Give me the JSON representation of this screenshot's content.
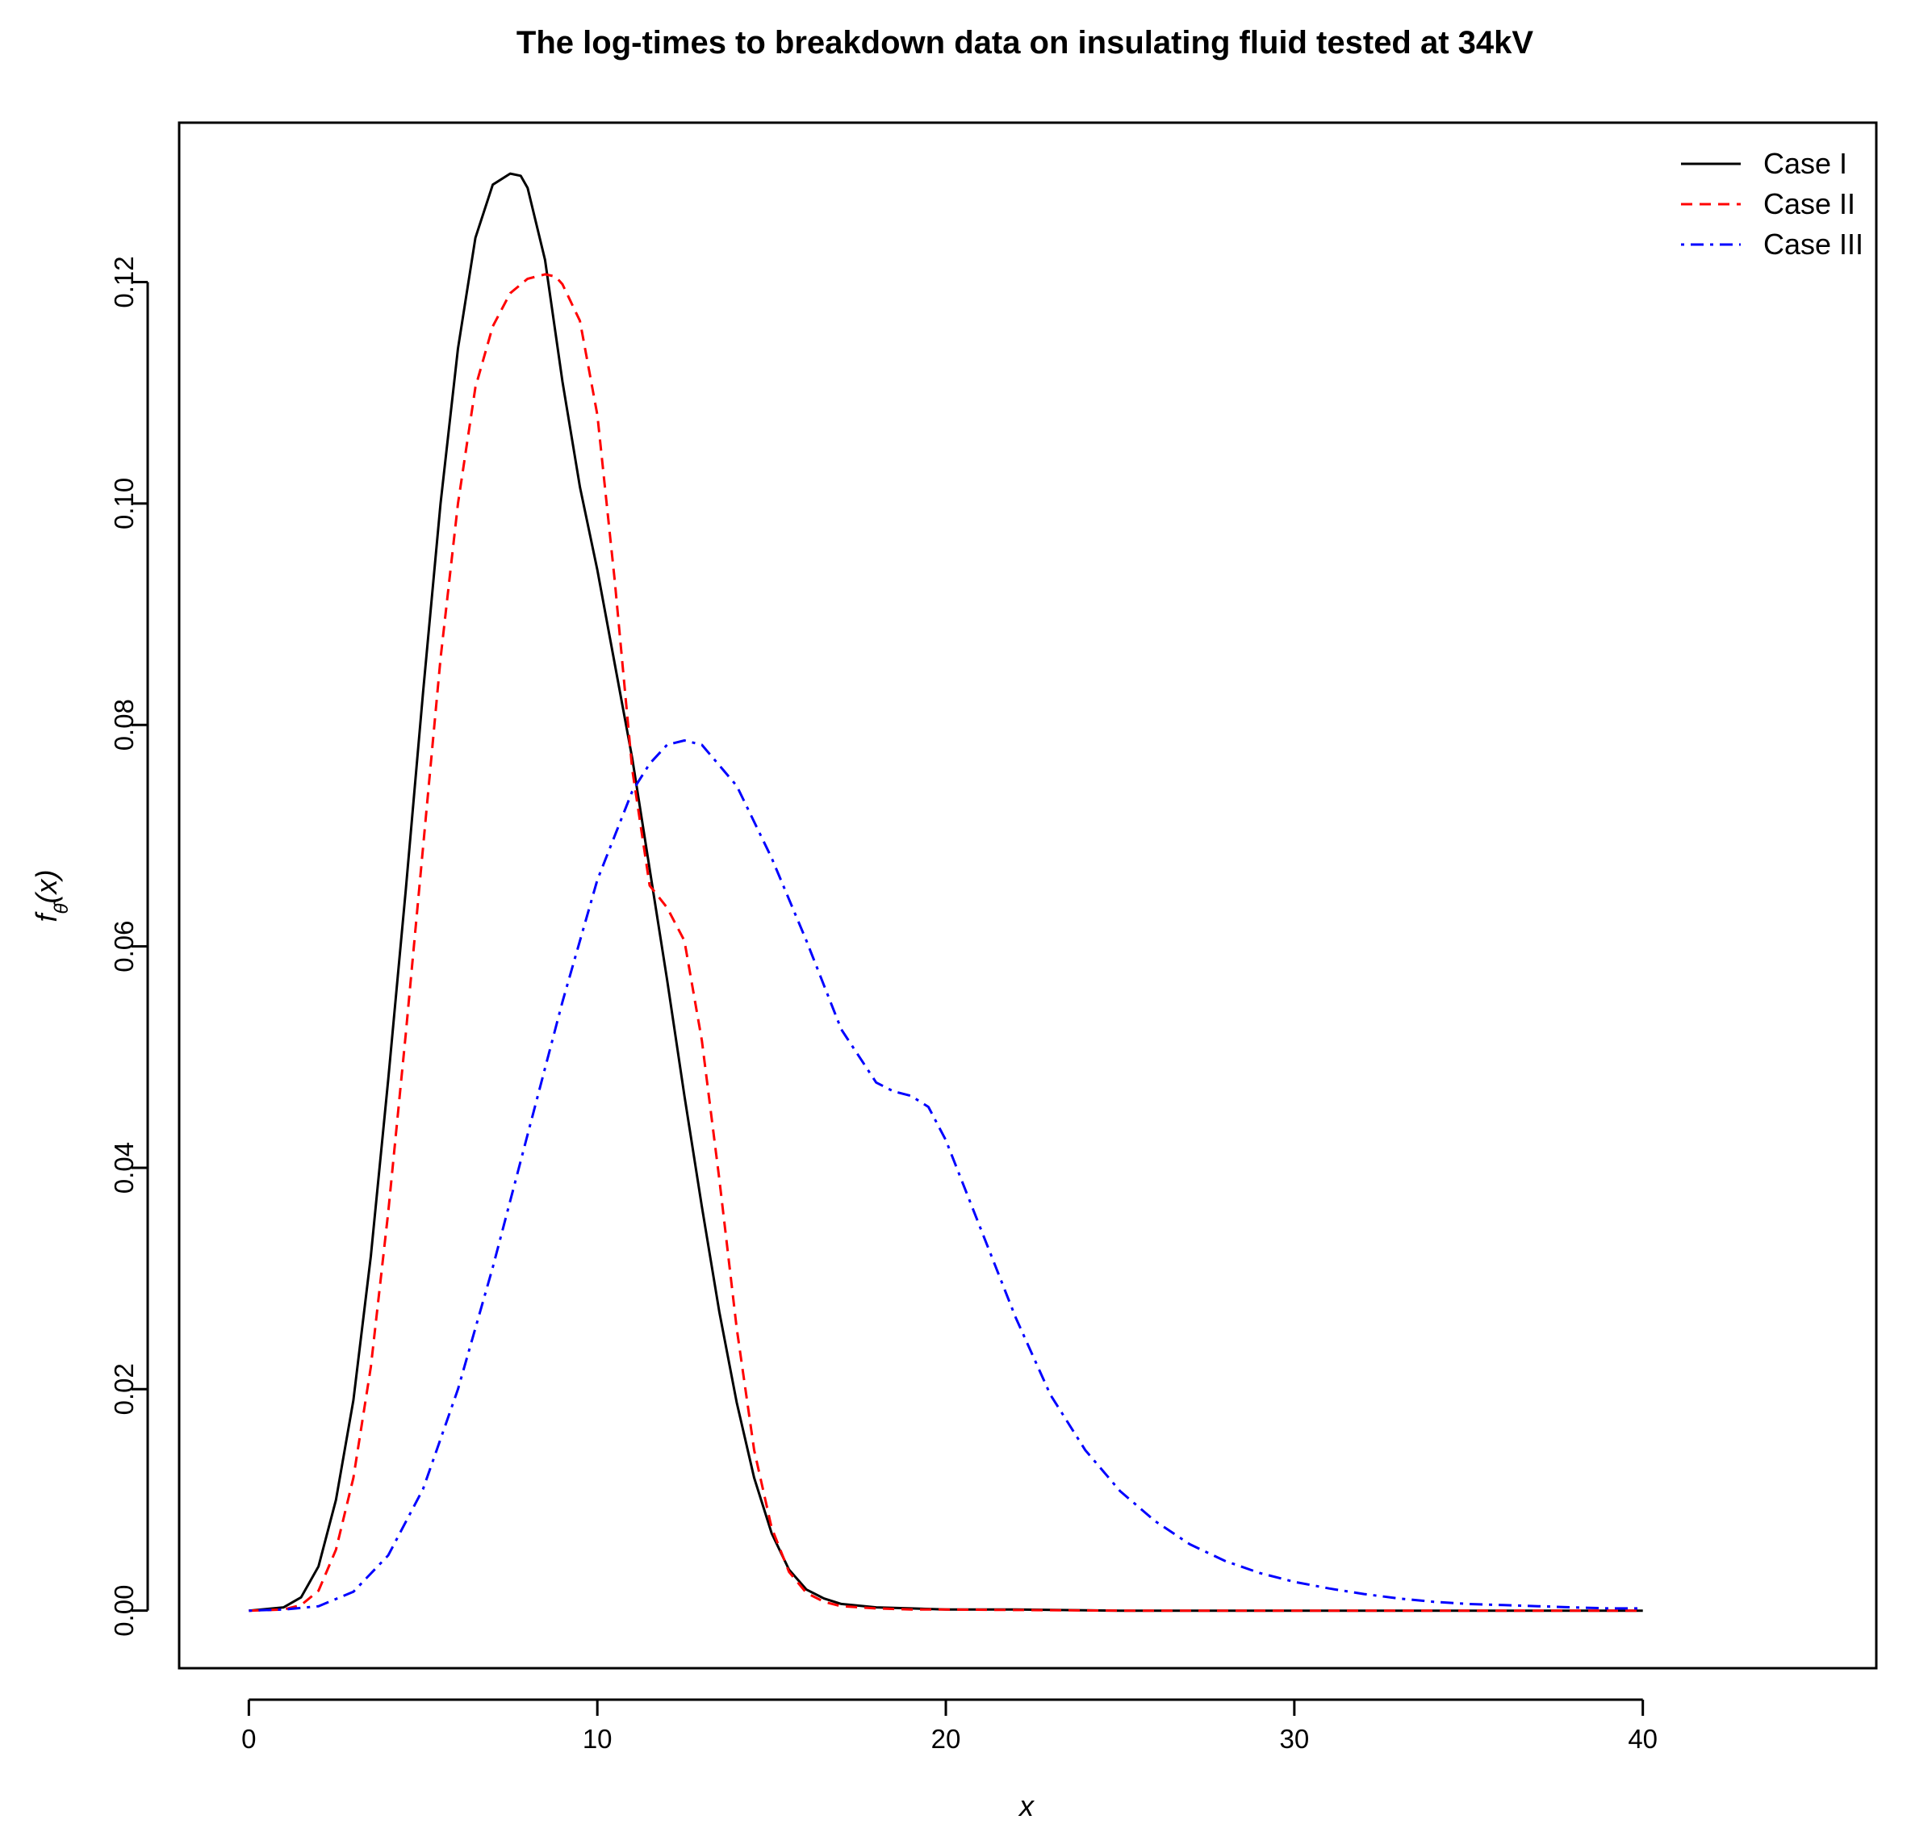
{
  "chart_data": {
    "type": "line",
    "title": "The log-times to breakdown data on insulating fluid tested at 34kV",
    "xlabel": "x",
    "ylabel": "fθ̂(x)",
    "ylabel_parts": {
      "f": "f",
      "sub": "θ̂",
      "arg": "(x)"
    },
    "xlim": [
      -2,
      46.7
    ],
    "ylim": [
      -0.0052,
      0.1344
    ],
    "xticks": [
      0,
      10,
      20,
      30,
      40
    ],
    "xtick_labels": [
      "0",
      "10",
      "20",
      "30",
      "40"
    ],
    "yticks": [
      0.0,
      0.02,
      0.04,
      0.06,
      0.08,
      0.1,
      0.12
    ],
    "ytick_labels": [
      "0.00",
      "0.02",
      "0.04",
      "0.06",
      "0.08",
      "0.10",
      "0.12"
    ],
    "grid": false,
    "legend_position": "top-right",
    "series": [
      {
        "name": "Case I",
        "color": "#000000",
        "dash": "solid",
        "x": [
          0,
          1,
          1.5,
          2,
          2.5,
          3,
          3.5,
          4,
          4.5,
          5,
          5.5,
          6,
          6.5,
          7,
          7.5,
          7.8,
          8,
          8.5,
          9,
          9.5,
          10,
          10.5,
          11,
          11.5,
          12,
          12.5,
          13,
          13.5,
          14,
          14.5,
          15,
          15.5,
          16,
          16.5,
          17,
          18,
          19,
          20,
          22,
          25,
          30,
          35,
          40
        ],
        "y": [
          0.0,
          0.0003,
          0.0012,
          0.004,
          0.01,
          0.019,
          0.032,
          0.048,
          0.065,
          0.083,
          0.1,
          0.114,
          0.124,
          0.1288,
          0.1298,
          0.1296,
          0.1285,
          0.122,
          0.111,
          0.1015,
          0.094,
          0.0855,
          0.077,
          0.067,
          0.057,
          0.0465,
          0.0365,
          0.027,
          0.0188,
          0.012,
          0.007,
          0.0037,
          0.0019,
          0.0011,
          0.0006,
          0.0003,
          0.0002,
          0.0001,
          0.0001,
          0.0,
          0.0,
          0.0,
          0.0
        ]
      },
      {
        "name": "Case II",
        "color": "#ff0000",
        "dash": "dashed",
        "x": [
          0,
          1,
          1.5,
          2,
          2.5,
          3,
          3.5,
          4,
          4.5,
          5,
          5.5,
          6,
          6.5,
          7,
          7.5,
          8,
          8.5,
          8.8,
          9,
          9.5,
          10,
          10.5,
          11,
          11.5,
          12,
          12.5,
          13,
          13.5,
          14,
          14.5,
          15,
          15.5,
          16,
          16.5,
          17,
          18,
          19,
          20,
          25,
          30,
          35,
          40
        ],
        "y": [
          0.0,
          0.0001,
          0.0005,
          0.0018,
          0.0055,
          0.012,
          0.022,
          0.036,
          0.052,
          0.069,
          0.086,
          0.1,
          0.1105,
          0.116,
          0.119,
          0.1203,
          0.1207,
          0.1205,
          0.1198,
          0.1165,
          0.108,
          0.093,
          0.076,
          0.0655,
          0.0635,
          0.0605,
          0.0515,
          0.039,
          0.0255,
          0.0145,
          0.0075,
          0.0035,
          0.0016,
          0.0008,
          0.0004,
          0.0002,
          0.0001,
          0.0001,
          0.0,
          0.0,
          0.0,
          0.0
        ]
      },
      {
        "name": "Case III",
        "color": "#0000ff",
        "dash": "dotdash",
        "x": [
          0,
          1,
          2,
          3,
          4,
          5,
          6,
          7,
          8,
          9,
          10,
          11,
          11.5,
          12,
          12.5,
          13,
          14,
          15,
          16,
          17,
          18,
          18.5,
          19,
          19.5,
          20,
          21,
          22,
          23,
          24,
          25,
          26,
          27,
          28,
          29,
          30,
          31,
          32,
          33,
          34,
          35,
          36,
          37,
          38,
          39,
          40
        ],
        "y": [
          0.0,
          0.0001,
          0.0004,
          0.0017,
          0.005,
          0.011,
          0.02,
          0.031,
          0.043,
          0.055,
          0.066,
          0.074,
          0.0765,
          0.0782,
          0.0786,
          0.0782,
          0.0745,
          0.068,
          0.0605,
          0.0525,
          0.0477,
          0.0469,
          0.0465,
          0.0455,
          0.0425,
          0.0345,
          0.0265,
          0.0195,
          0.0145,
          0.0108,
          0.0081,
          0.006,
          0.0045,
          0.0034,
          0.0026,
          0.002,
          0.0015,
          0.0011,
          0.0008,
          0.0006,
          0.0005,
          0.0004,
          0.0003,
          0.0002,
          0.0002
        ]
      }
    ]
  }
}
